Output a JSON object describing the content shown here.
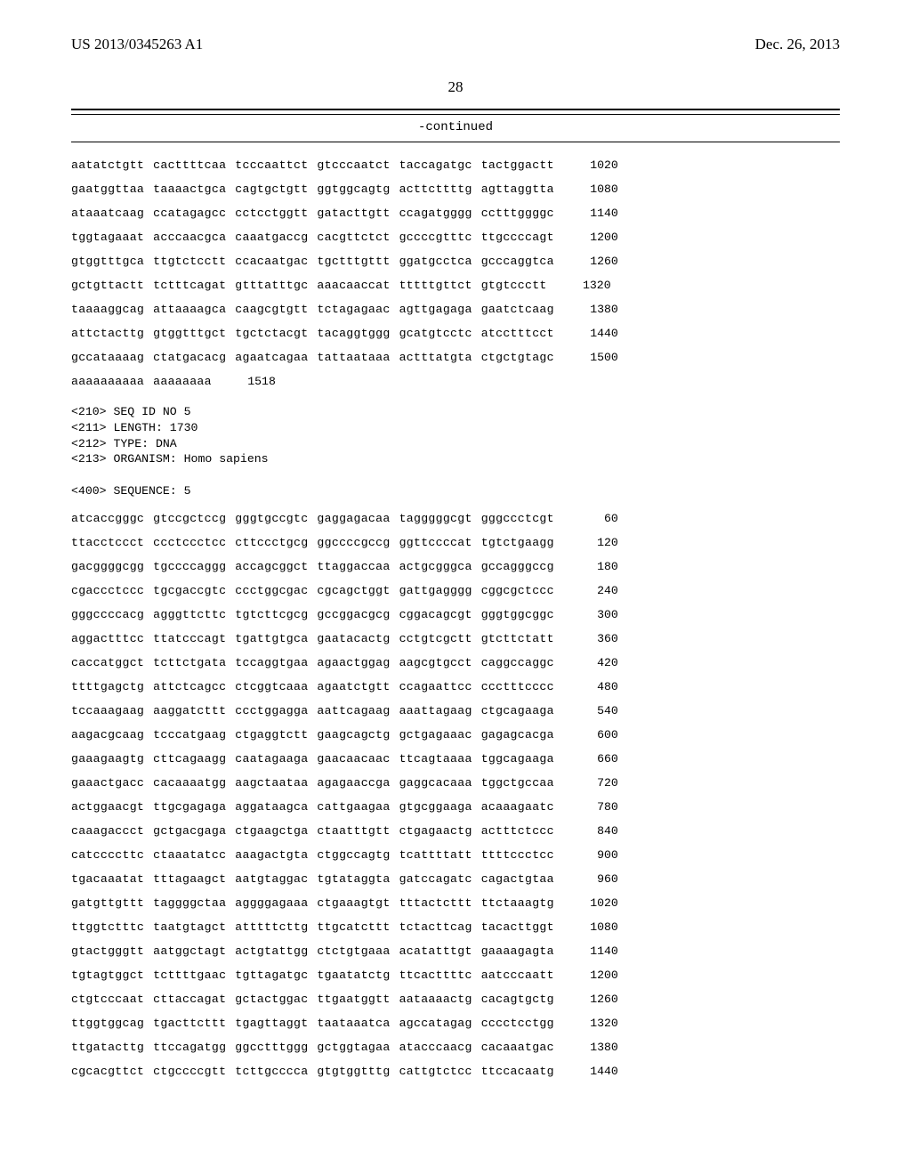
{
  "header": {
    "left": "US 2013/0345263 A1",
    "right": "Dec. 26, 2013"
  },
  "page_number": "28",
  "continued_label": "-continued",
  "seq1": {
    "rows": [
      {
        "g": [
          "aatatctgtt",
          "cacttttcaa",
          "tcccaattct",
          "gtcccaatct",
          "taccagatgc",
          "tactggactt"
        ],
        "pos": "1020"
      },
      {
        "g": [
          "gaatggttaa",
          "taaaactgca",
          "cagtgctgtt",
          "ggtggcagtg",
          "acttcttttg",
          "agttaggtta"
        ],
        "pos": "1080"
      },
      {
        "g": [
          "ataaatcaag",
          "ccatagagcc",
          "cctcctggtt",
          "gatacttgtt",
          "ccagatgggg",
          "cctttggggc"
        ],
        "pos": "1140"
      },
      {
        "g": [
          "tggtagaaat",
          "acccaacgca",
          "caaatgaccg",
          "cacgttctct",
          "gccccgtttc",
          "ttgccccagt"
        ],
        "pos": "1200"
      },
      {
        "g": [
          "gtggtttgca",
          "ttgtctcctt",
          "ccacaatgac",
          "tgctttgttt",
          "ggatgcctca",
          "gcccaggtca"
        ],
        "pos": "1260"
      },
      {
        "g": [
          "gctgttactt",
          "tctttcagat",
          "gtttatttgc",
          "aaacaaccat",
          "tttttgttct",
          "gtgtccctt"
        ],
        "pos": "1320"
      },
      {
        "g": [
          "taaaaggcag",
          "attaaaagca",
          "caagcgtgtt",
          "tctagagaac",
          "agttgagaga",
          "gaatctcaag"
        ],
        "pos": "1380"
      },
      {
        "g": [
          "attctacttg",
          "gtggtttgct",
          "tgctctacgt",
          "tacaggtggg",
          "gcatgtcctc",
          "atcctttcct"
        ],
        "pos": "1440"
      },
      {
        "g": [
          "gccataaaag",
          "ctatgacacg",
          "agaatcagaa",
          "tattaataaa",
          "actttatgta",
          "ctgctgtagc"
        ],
        "pos": "1500"
      },
      {
        "g": [
          "aaaaaaaaaa",
          "aaaaaaaa"
        ],
        "pos": "1518"
      }
    ]
  },
  "meta": {
    "lines": [
      "<210> SEQ ID NO 5",
      "<211> LENGTH: 1730",
      "<212> TYPE: DNA",
      "<213> ORGANISM: Homo sapiens",
      "",
      "<400> SEQUENCE: 5"
    ]
  },
  "seq2": {
    "rows": [
      {
        "g": [
          "atcaccgggc",
          "gtccgctccg",
          "gggtgccgtc",
          "gaggagacaa",
          "tagggggcgt",
          "gggccctcgt"
        ],
        "pos": "60"
      },
      {
        "g": [
          "ttacctccct",
          "ccctccctcc",
          "cttccctgcg",
          "ggccccgccg",
          "ggttccccat",
          "tgtctgaagg"
        ],
        "pos": "120"
      },
      {
        "g": [
          "gacggggcgg",
          "tgccccaggg",
          "accagcggct",
          "ttaggaccaa",
          "actgcgggca",
          "gccagggccg"
        ],
        "pos": "180"
      },
      {
        "g": [
          "cgaccctccc",
          "tgcgaccgtc",
          "ccctggcgac",
          "cgcagctggt",
          "gattgagggg",
          "cggcgctccc"
        ],
        "pos": "240"
      },
      {
        "g": [
          "gggccccacg",
          "agggttcttc",
          "tgtcttcgcg",
          "gccggacgcg",
          "cggacagcgt",
          "gggtggcggc"
        ],
        "pos": "300"
      },
      {
        "g": [
          "aggactttcc",
          "ttatcccagt",
          "tgattgtgca",
          "gaatacactg",
          "cctgtcgctt",
          "gtcttctatt"
        ],
        "pos": "360"
      },
      {
        "g": [
          "caccatggct",
          "tcttctgata",
          "tccaggtgaa",
          "agaactggag",
          "aagcgtgcct",
          "caggccaggc"
        ],
        "pos": "420"
      },
      {
        "g": [
          "ttttgagctg",
          "attctcagcc",
          "ctcggtcaaa",
          "agaatctgtt",
          "ccagaattcc",
          "ccctttcccc"
        ],
        "pos": "480"
      },
      {
        "g": [
          "tccaaagaag",
          "aaggatcttt",
          "ccctggagga",
          "aattcagaag",
          "aaattagaag",
          "ctgcagaaga"
        ],
        "pos": "540"
      },
      {
        "g": [
          "aagacgcaag",
          "tcccatgaag",
          "ctgaggtctt",
          "gaagcagctg",
          "gctgagaaac",
          "gagagcacga"
        ],
        "pos": "600"
      },
      {
        "g": [
          "gaaagaagtg",
          "cttcagaagg",
          "caatagaaga",
          "gaacaacaac",
          "ttcagtaaaa",
          "tggcagaaga"
        ],
        "pos": "660"
      },
      {
        "g": [
          "gaaactgacc",
          "cacaaaatgg",
          "aagctaataa",
          "agagaaccga",
          "gaggcacaaa",
          "tggctgccaa"
        ],
        "pos": "720"
      },
      {
        "g": [
          "actggaacgt",
          "ttgcgagaga",
          "aggataagca",
          "cattgaagaa",
          "gtgcggaaga",
          "acaaagaatc"
        ],
        "pos": "780"
      },
      {
        "g": [
          "caaagaccct",
          "gctgacgaga",
          "ctgaagctga",
          "ctaatttgtt",
          "ctgagaactg",
          "actttctccc"
        ],
        "pos": "840"
      },
      {
        "g": [
          "catccccttc",
          "ctaaatatcc",
          "aaagactgta",
          "ctggccagtg",
          "tcattttatt",
          "ttttccctcc"
        ],
        "pos": "900"
      },
      {
        "g": [
          "tgacaaatat",
          "tttagaagct",
          "aatgtaggac",
          "tgtataggta",
          "gatccagatc",
          "cagactgtaa"
        ],
        "pos": "960"
      },
      {
        "g": [
          "gatgttgttt",
          "taggggctaa",
          "aggggagaaa",
          "ctgaaagtgt",
          "tttactcttt",
          "ttctaaagtg"
        ],
        "pos": "1020"
      },
      {
        "g": [
          "ttggtctttc",
          "taatgtagct",
          "atttttcttg",
          "ttgcatcttt",
          "tctacttcag",
          "tacacttggt"
        ],
        "pos": "1080"
      },
      {
        "g": [
          "gtactgggtt",
          "aatggctagt",
          "actgtattgg",
          "ctctgtgaaa",
          "acatatttgt",
          "gaaaagagta"
        ],
        "pos": "1140"
      },
      {
        "g": [
          "tgtagtggct",
          "tcttttgaac",
          "tgttagatgc",
          "tgaatatctg",
          "ttcacttttc",
          "aatcccaatt"
        ],
        "pos": "1200"
      },
      {
        "g": [
          "ctgtcccaat",
          "cttaccagat",
          "gctactggac",
          "ttgaatggtt",
          "aataaaactg",
          "cacagtgctg"
        ],
        "pos": "1260"
      },
      {
        "g": [
          "ttggtggcag",
          "tgacttcttt",
          "tgagttaggt",
          "taataaatca",
          "agccatagag",
          "cccctcctgg"
        ],
        "pos": "1320"
      },
      {
        "g": [
          "ttgatacttg",
          "ttccagatgg",
          "ggcctttggg",
          "gctggtagaa",
          "atacccaacg",
          "cacaaatgac"
        ],
        "pos": "1380"
      },
      {
        "g": [
          "cgcacgttct",
          "ctgccccgtt",
          "tcttgcccca",
          "gtgtggtttg",
          "cattgtctcc",
          "ttccacaatg"
        ],
        "pos": "1440"
      }
    ]
  }
}
